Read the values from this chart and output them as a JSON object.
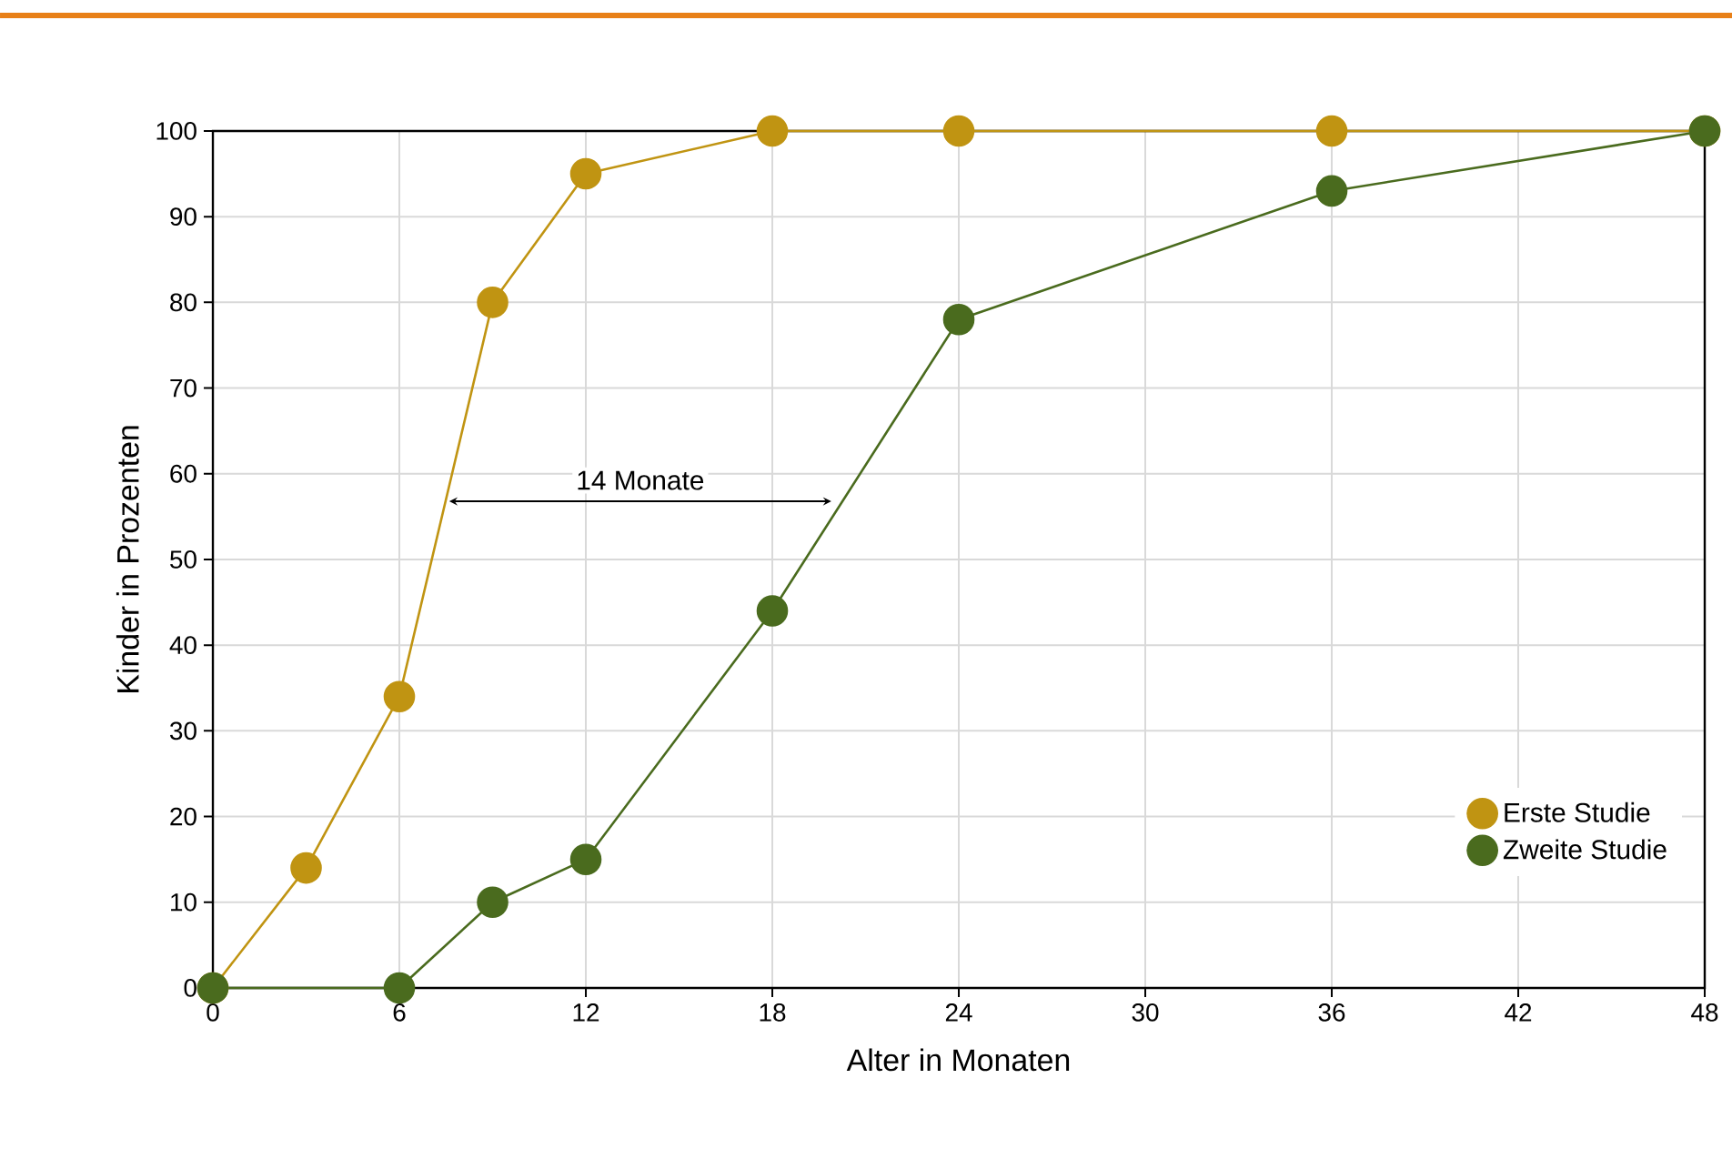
{
  "chart_data": {
    "type": "line",
    "xlabel": "Alter in Monaten",
    "ylabel": "Kinder in Prozenten",
    "xlim": [
      0,
      48
    ],
    "xticks": [
      0,
      6,
      12,
      18,
      24,
      30,
      36,
      42,
      48
    ],
    "ylim": [
      0,
      100
    ],
    "yticks": [
      0,
      10,
      20,
      30,
      40,
      50,
      60,
      70,
      80,
      90,
      100
    ],
    "grid": true,
    "legend": "bottom right",
    "marker": "circle",
    "line_style": "solid",
    "series": [
      {
        "name": "Erste Studie",
        "color": "#c09412",
        "x": [
          0,
          3,
          6,
          9,
          12,
          18,
          24,
          36,
          48
        ],
        "values": [
          0,
          14,
          34,
          80,
          95,
          100,
          100,
          100,
          100
        ]
      },
      {
        "name": "Zweite Studie",
        "color": "#4a6b1e",
        "x": [
          0,
          6,
          9,
          12,
          18,
          24,
          36,
          48
        ],
        "values": [
          0,
          0,
          10,
          15,
          44,
          78,
          93,
          100
        ]
      }
    ],
    "annotations": [
      "14 Monate"
    ]
  }
}
